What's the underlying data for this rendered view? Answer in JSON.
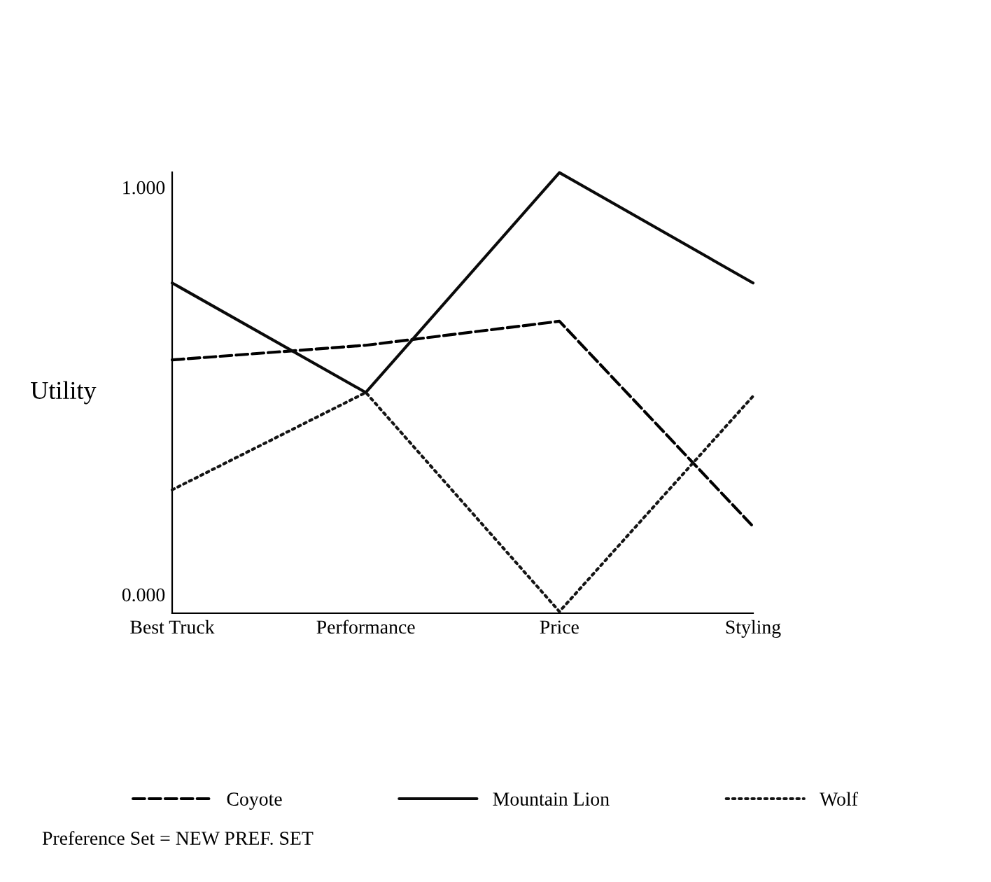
{
  "chart_data": {
    "type": "line",
    "ylabel": "Utility",
    "categories": [
      "Best Truck",
      "Performance",
      "Price",
      "Styling"
    ],
    "series": [
      {
        "name": "Coyote",
        "color": "#000000",
        "line_style": "dashed",
        "values": [
          0.576,
          0.612,
          0.671,
          0.167
        ]
      },
      {
        "name": "Mountain Lion",
        "color": "#0a0a0a",
        "line_style": "solid",
        "values": [
          0.765,
          0.496,
          1.036,
          0.765
        ]
      },
      {
        "name": "Wolf",
        "color": "#141414",
        "line_style": "dotted",
        "values": [
          0.257,
          0.496,
          -0.042,
          0.487
        ]
      }
    ],
    "ylim": [
      -0.046,
      1.037
    ],
    "yticks": [
      {
        "value": 0,
        "label": "0.000"
      },
      {
        "value": 1,
        "label": "1.000"
      }
    ],
    "grid": false,
    "legend": "bottom",
    "marker": "none",
    "annotations": [
      "Preference Set = NEW PREF. SET"
    ]
  }
}
